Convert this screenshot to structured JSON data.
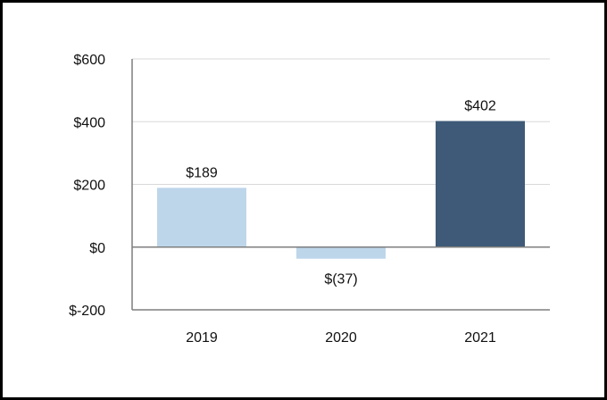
{
  "chart_data": {
    "type": "bar",
    "title": "",
    "xlabel": "",
    "ylabel": "",
    "categories": [
      "2019",
      "2020",
      "2021"
    ],
    "values": [
      189,
      -37,
      402
    ],
    "data_labels": [
      "$189",
      "$(37)",
      "$402"
    ],
    "bar_colors": [
      "#bed6ea",
      "#bed6ea",
      "#3e5a78"
    ],
    "ylim": [
      -200,
      600
    ],
    "yticks": [
      600,
      400,
      200,
      0,
      -200
    ],
    "ytick_labels": [
      "$600",
      "$400",
      "$200",
      "$0",
      "$-200"
    ],
    "grid": true,
    "legend": "none",
    "colors": {
      "axis": "#7f7f7f",
      "grid": "#d9d9d9",
      "frame": "#000000"
    }
  }
}
